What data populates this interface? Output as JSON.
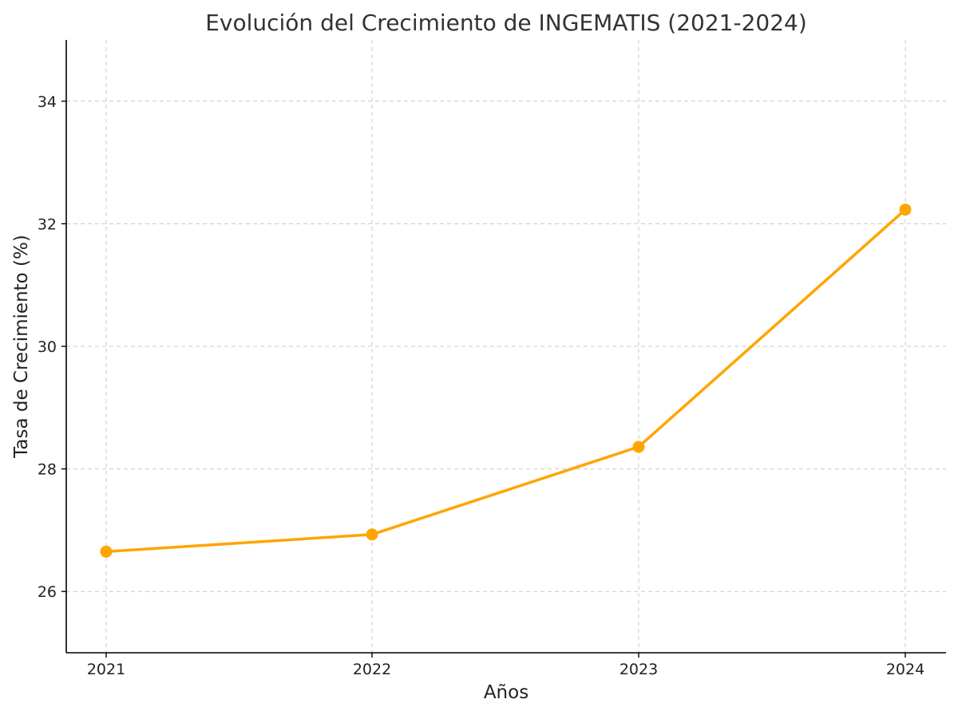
{
  "chart_data": {
    "type": "line",
    "title": "Evolución del Crecimiento de INGEMATIS (2021-2024)",
    "xlabel": "Años",
    "ylabel": "Tasa de Crecimiento (%)",
    "x": [
      "2021",
      "2022",
      "2023",
      "2024"
    ],
    "series": [
      {
        "values": [
          26.65,
          26.93,
          28.36,
          32.23
        ],
        "color": "#FFA500"
      }
    ],
    "ylim": [
      25,
      35
    ],
    "yticks": [
      26,
      28,
      30,
      32,
      34
    ],
    "grid": true,
    "marker": "circle"
  }
}
